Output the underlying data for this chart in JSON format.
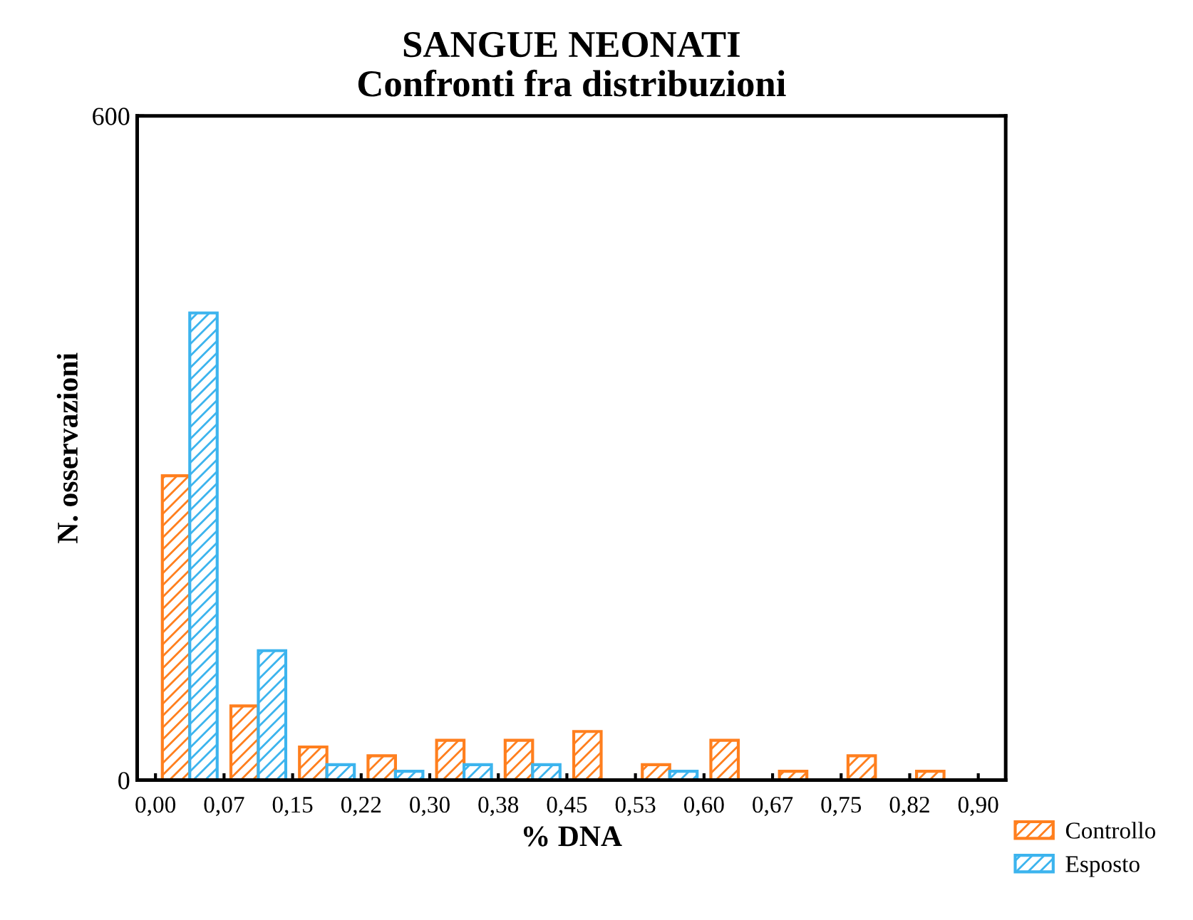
{
  "chart_data": {
    "type": "histogram",
    "title": "SANGUE NEONATI\nConfronti fra distribuzioni",
    "xlabel": "% DNA",
    "ylabel": "N. osservazioni",
    "bins": [
      0,
      0.075,
      0.15,
      0.225,
      0.3,
      0.375,
      0.45,
      0.525,
      0.6,
      0.675,
      0.75,
      0.825,
      0.9
    ],
    "series": [
      {
        "name": "Controllo",
        "color": "#ff7f1e",
        "values": [
          275,
          67,
          30,
          22,
          36,
          36,
          44,
          14,
          36,
          8,
          22,
          8
        ]
      },
      {
        "name": "Esposto",
        "color": "#3cb4ee",
        "values": [
          422,
          117,
          14,
          8,
          14,
          14,
          0,
          8,
          0,
          0,
          0,
          0
        ]
      }
    ],
    "xlim": [
      -0.02,
      0.93
    ],
    "ylim": [
      0,
      600
    ],
    "xticks": [
      {
        "value": 0,
        "label": "0,00"
      },
      {
        "value": 0.075,
        "label": "0,07"
      },
      {
        "value": 0.15,
        "label": "0,15"
      },
      {
        "value": 0.225,
        "label": "0,22"
      },
      {
        "value": 0.3,
        "label": "0,30"
      },
      {
        "value": 0.375,
        "label": "0,38"
      },
      {
        "value": 0.45,
        "label": "0,45"
      },
      {
        "value": 0.525,
        "label": "0,53"
      },
      {
        "value": 0.6,
        "label": "0,60"
      },
      {
        "value": 0.675,
        "label": "0,67"
      },
      {
        "value": 0.75,
        "label": "0,75"
      },
      {
        "value": 0.825,
        "label": "0,82"
      },
      {
        "value": 0.9,
        "label": "0,90"
      }
    ],
    "yticks": [
      0,
      600
    ],
    "legend": "bottom right",
    "grid": false
  }
}
